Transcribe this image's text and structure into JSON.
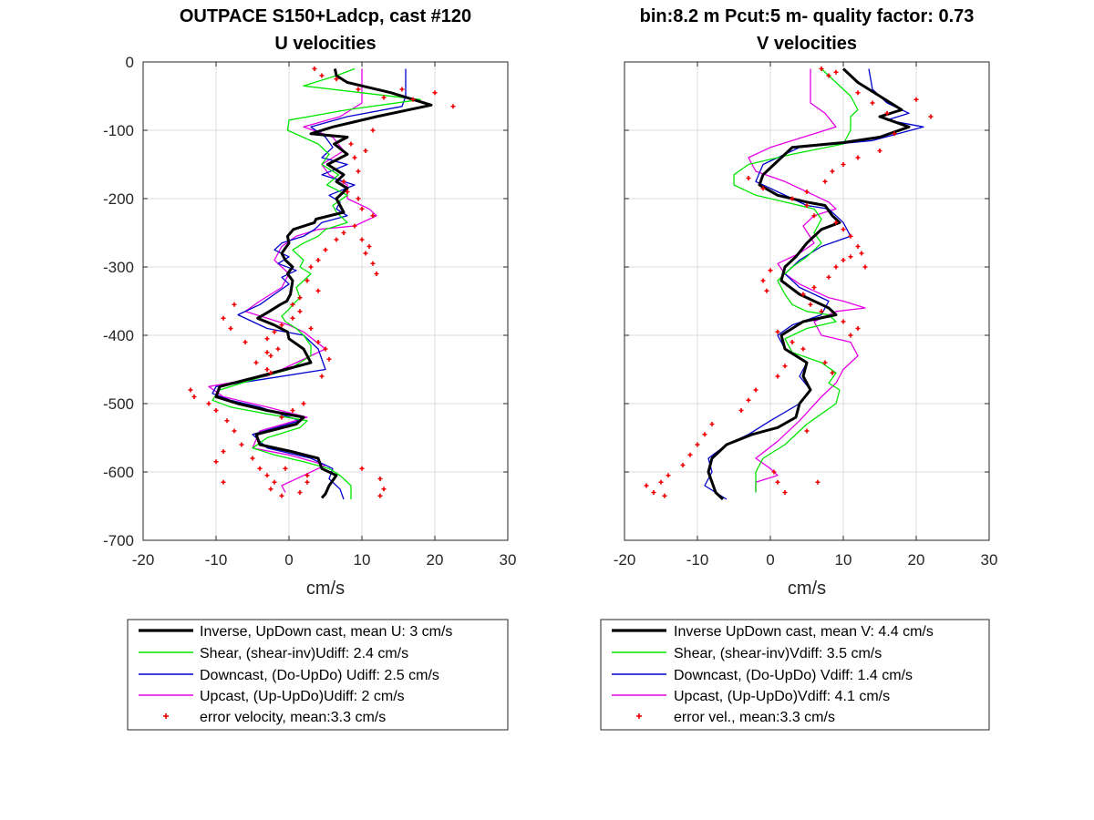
{
  "chart_data": [
    {
      "type": "line",
      "title": [
        "OUTPACE S150+Ladcp, cast #120",
        "U velocities"
      ],
      "xlabel": "cm/s",
      "ylabel": "",
      "xlim": [
        -20,
        30
      ],
      "ylim": [
        -700,
        0
      ],
      "xticks": [
        "-20",
        "-10",
        "0",
        "10",
        "20",
        "30"
      ],
      "yticks": [
        "0",
        "-100",
        "-200",
        "-300",
        "-400",
        "-500",
        "-600",
        "-700"
      ],
      "grid": true,
      "legend_position": "below",
      "legend": [
        "Inverse, UpDown cast, mean U:  3 cm/s",
        "Shear, (shear-inv)Udiff:  2.4 cm/s",
        "Downcast, (Do-UpDo) Udiff:  2.5 cm/s",
        "Upcast, (Up-UpDo)Udiff:  2 cm/s",
        "error velocity, mean:3.3 cm/s"
      ],
      "series": [
        {
          "name": "Inverse, UpDown cast, mean U:  3 cm/s",
          "color": "#000000",
          "style": "thick",
          "x": [
            6.3,
            6.5,
            8.0,
            14.0,
            19.5,
            12.0,
            6.0,
            3.0,
            8.0,
            6.2,
            8.0,
            5.3,
            7.5,
            6.5,
            8.0,
            6.5,
            7.5,
            3.7,
            3.5,
            0.6,
            -0.2,
            0.0,
            -1.0,
            -0.5,
            0.5,
            -0.2,
            0.5,
            0.2,
            -0.3,
            -1.2,
            -2.7,
            -4.3,
            -2.0,
            -0.2,
            0.0,
            2.0,
            3.0,
            -4.0,
            -9.5,
            -10.0,
            -7.0,
            -3.0,
            2.0,
            1.0,
            -4.5,
            -4.0,
            0.3,
            4.0,
            4.5,
            6.5,
            5.5,
            5.0,
            4.5
          ],
          "y": [
            -10,
            -20,
            -30,
            -45,
            -63,
            -80,
            -95,
            -105,
            -110,
            -120,
            -135,
            -150,
            -165,
            -175,
            -185,
            -200,
            -220,
            -230,
            -235,
            -245,
            -255,
            -265,
            -280,
            -290,
            -300,
            -310,
            -320,
            -340,
            -350,
            -355,
            -365,
            -375,
            -385,
            -395,
            -405,
            -420,
            -440,
            -460,
            -475,
            -490,
            -500,
            -510,
            -520,
            -530,
            -545,
            -560,
            -570,
            -580,
            -595,
            -605,
            -620,
            -632,
            -638
          ]
        },
        {
          "name": "Shear, (shear-inv)Udiff:  2.4 cm/s",
          "color": "#00e600",
          "x": [
            9.0,
            6.5,
            2.0,
            10.0,
            18.0,
            8.0,
            0.0,
            -0.2,
            4.0,
            5.5,
            4.5,
            6.8,
            5.2,
            8.0,
            6.0,
            6.5,
            8.0,
            5.0,
            4.0,
            2.0,
            0.5,
            2.0,
            1.5,
            3.0,
            2.0,
            1.0,
            1.5,
            0.5,
            0.0,
            -1.0,
            -0.5,
            1.0,
            2.0,
            3.0,
            3.0,
            0.0,
            -5.0,
            -9.5,
            -10.5,
            -8.0,
            -3.0,
            2.5,
            1.5,
            -3.0,
            -5.0,
            -2.0,
            2.0,
            5.5,
            7.0,
            8.5,
            8.5
          ],
          "y": [
            -10,
            -20,
            -35,
            -45,
            -55,
            -70,
            -85,
            -100,
            -120,
            -135,
            -150,
            -165,
            -180,
            -195,
            -210,
            -220,
            -235,
            -245,
            -255,
            -265,
            -275,
            -290,
            -300,
            -310,
            -320,
            -330,
            -345,
            -355,
            -362,
            -372,
            -380,
            -390,
            -400,
            -415,
            -430,
            -450,
            -465,
            -480,
            -495,
            -505,
            -515,
            -525,
            -535,
            -550,
            -565,
            -575,
            -585,
            -595,
            -605,
            -620,
            -640
          ]
        },
        {
          "name": "Downcast, (Do-UpDo) Udiff:  2.5 cm/s",
          "color": "#0000cc",
          "x": [
            16.0,
            16.0,
            15.5,
            8.0,
            3.0,
            5.0,
            6.0,
            4.5,
            8.0,
            4.5,
            9.0,
            5.5,
            7.0,
            6.5,
            8.0,
            4.5,
            3.5,
            2.0,
            -1.0,
            -2.0,
            0.0,
            -1.5,
            1.0,
            -1.0,
            0.0,
            -2.0,
            -4.0,
            -7.0,
            -5.0,
            -3.0,
            2.0,
            4.0,
            5.0,
            -4.0,
            -10.0,
            -10.5,
            -8.0,
            -4.0,
            1.5,
            -5.0,
            -3.0,
            3.0,
            6.0,
            5.5,
            7.0,
            7.5
          ],
          "y": [
            -10,
            -50,
            -65,
            -80,
            -95,
            -110,
            -125,
            -140,
            -150,
            -165,
            -180,
            -195,
            -205,
            -215,
            -225,
            -235,
            -245,
            -255,
            -265,
            -275,
            -285,
            -295,
            -305,
            -315,
            -325,
            -340,
            -355,
            -370,
            -380,
            -390,
            -400,
            -420,
            -450,
            -465,
            -475,
            -485,
            -495,
            -505,
            -525,
            -545,
            -565,
            -580,
            -595,
            -610,
            -625,
            -640
          ]
        },
        {
          "name": "Upcast, (Up-UpDo)Udiff:  2 cm/s",
          "color": "#e600e6",
          "x": [
            10.0,
            10.0,
            10.0,
            7.0,
            2.0,
            6.0,
            7.5,
            4.5,
            5.5,
            8.0,
            8.0,
            11.0,
            12.0,
            9.0,
            4.0,
            1.0,
            -1.0,
            -2.0,
            0.0,
            -1.0,
            -4.0,
            -6.0,
            -3.0,
            0.0,
            2.0,
            5.0,
            -3.0,
            -11.0,
            -9.0,
            -3.0,
            2.5,
            -4.0,
            -5.0,
            0.0,
            5.0,
            2.0,
            -1.0,
            -0.5
          ],
          "y": [
            -10,
            -40,
            -60,
            -80,
            -95,
            -110,
            -130,
            -150,
            -165,
            -180,
            -200,
            -215,
            -225,
            -240,
            -245,
            -255,
            -270,
            -290,
            -310,
            -330,
            -350,
            -365,
            -375,
            -385,
            -395,
            -420,
            -460,
            -475,
            -490,
            -505,
            -520,
            -540,
            -565,
            -575,
            -590,
            -605,
            -620,
            -630
          ]
        }
      ],
      "error_velocity": {
        "name": "error velocity, mean:3.3 cm/s",
        "color": "#ee0000",
        "x": [
          3.5,
          4.5,
          6.5,
          9.5,
          13.0,
          17.0,
          22.5,
          15.5,
          20.0,
          11.5,
          8.5,
          10.5,
          9.0,
          9.5,
          7.5,
          8.0,
          9.5,
          10.0,
          9.0,
          11.5,
          10.0,
          11.0,
          10.5,
          11.5,
          12.0,
          7.5,
          6.5,
          5.0,
          4.0,
          3.0,
          2.5,
          4.0,
          1.5,
          0.5,
          1.5,
          0.5,
          -1.0,
          -2.0,
          -3.0,
          -1.5,
          -2.5,
          -4.5,
          -3.0,
          -7.5,
          -9.0,
          -8.0,
          -6.0,
          -3.0,
          -2.5,
          3.0,
          4.0,
          5.0,
          5.5,
          4.5,
          2.0,
          0.5,
          -1.0,
          -13.5,
          -13.0,
          -11.0,
          -10.0,
          -8.5,
          -7.5,
          -6.5,
          -5.0,
          -9.0,
          -10.0,
          -4.0,
          -3.0,
          -2.0,
          10.0,
          12.5,
          13.0,
          12.5,
          -9.0,
          -2.5,
          -1.0,
          -0.5,
          2.5,
          2.5,
          1.5
        ],
        "y": [
          -10,
          -20,
          -25,
          -40,
          -52,
          -55,
          -65,
          -40,
          -45,
          -100,
          -120,
          -130,
          -140,
          -160,
          -175,
          -190,
          -200,
          -215,
          -240,
          -225,
          -260,
          -270,
          -280,
          -295,
          -310,
          -250,
          -260,
          -275,
          -290,
          -300,
          -320,
          -335,
          -345,
          -355,
          -365,
          -375,
          -385,
          -395,
          -405,
          -420,
          -430,
          -440,
          -450,
          -355,
          -375,
          -390,
          -410,
          -425,
          -455,
          -390,
          -410,
          -420,
          -435,
          -460,
          -500,
          -510,
          -520,
          -480,
          -490,
          -500,
          -510,
          -525,
          -540,
          -560,
          -580,
          -570,
          -585,
          -595,
          -605,
          -615,
          -595,
          -610,
          -625,
          -635,
          -615,
          -625,
          -635,
          -595,
          -605,
          -615,
          -630
        ]
      }
    },
    {
      "type": "line",
      "title": [
        "bin:8.2 m  Pcut:5 m- quality factor:  0.73",
        "V velocities"
      ],
      "xlabel": "cm/s",
      "ylabel": "",
      "xlim": [
        -20,
        30
      ],
      "ylim": [
        -700,
        0
      ],
      "xticks": [
        "-20",
        "-10",
        "0",
        "10",
        "20",
        "30"
      ],
      "yticks": [],
      "grid": true,
      "legend_position": "below",
      "legend": [
        "Inverse UpDown cast, mean V:  4.4 cm/s",
        "Shear, (shear-inv)Vdiff:  3.5 cm/s",
        "Downcast, (Do-UpDo) Vdiff:  1.4 cm/s",
        "Upcast, (Up-UpDo)Vdiff:  4.1 cm/s",
        "error vel., mean:3.3 cm/s"
      ],
      "series": [
        {
          "name": "Inverse UpDown cast, mean V:  4.4 cm/s",
          "color": "#000000",
          "style": "thick",
          "x": [
            10.0,
            12.0,
            15.0,
            18.0,
            15.0,
            19.0,
            15.0,
            10.0,
            3.0,
            0.5,
            -1.0,
            -1.5,
            1.0,
            5.0,
            7.5,
            8.5,
            9.5,
            7.0,
            5.0,
            3.5,
            2.0,
            1.5,
            4.0,
            8.0,
            9.0,
            4.5,
            1.5,
            2.0,
            5.0,
            4.5,
            5.5,
            4.0,
            3.5,
            1.0,
            -2.5,
            -6.0,
            -8.0,
            -8.5,
            -8.0,
            -7.5,
            -6.5
          ],
          "y": [
            -10,
            -30,
            -50,
            -70,
            -80,
            -95,
            -110,
            -118,
            -125,
            -150,
            -165,
            -180,
            -195,
            -205,
            -210,
            -225,
            -235,
            -245,
            -265,
            -285,
            -300,
            -320,
            -340,
            -360,
            -370,
            -380,
            -400,
            -420,
            -440,
            -460,
            -480,
            -500,
            -520,
            -535,
            -545,
            -560,
            -580,
            -600,
            -615,
            -630,
            -640
          ]
        },
        {
          "name": "Shear, (shear-inv)Vdiff:  3.5 cm/s",
          "color": "#00e600",
          "x": [
            7.0,
            9.0,
            11.0,
            12.0,
            11.0,
            11.0,
            10.0,
            3.0,
            -3.0,
            -5.0,
            -5.0,
            -2.0,
            2.0,
            6.0,
            7.0,
            6.0,
            7.0,
            5.0,
            3.0,
            1.0,
            2.0,
            3.0,
            5.0,
            8.0,
            9.0,
            5.0,
            2.0,
            3.0,
            7.0,
            9.0,
            8.0,
            9.5,
            9.0,
            5.0,
            2.0,
            -1.0,
            -2.0,
            -2.0
          ],
          "y": [
            -10,
            -30,
            -50,
            -70,
            -80,
            -100,
            -120,
            -135,
            -150,
            -165,
            -180,
            -195,
            -205,
            -215,
            -230,
            -250,
            -265,
            -285,
            -300,
            -320,
            -340,
            -355,
            -365,
            -370,
            -380,
            -390,
            -405,
            -425,
            -440,
            -455,
            -470,
            -480,
            -500,
            -530,
            -560,
            -580,
            -600,
            -630
          ]
        },
        {
          "name": "Downcast, (Do-UpDo) Vdiff:  1.4 cm/s",
          "color": "#0000cc",
          "x": [
            13.5,
            14.0,
            16.0,
            19.0,
            16.0,
            21.0,
            14.0,
            4.0,
            -1.0,
            -2.0,
            1.0,
            3.0,
            5.0,
            8.0,
            10.0,
            11.0,
            7.0,
            4.0,
            2.0,
            4.0,
            8.0,
            7.0,
            3.0,
            1.0,
            2.0,
            5.0,
            4.0,
            5.5,
            4.0,
            0.0,
            -3.0,
            -6.0,
            -8.5,
            -8.0,
            -9.0,
            -6.0
          ],
          "y": [
            -10,
            -40,
            -60,
            -75,
            -85,
            -95,
            -115,
            -125,
            -150,
            -175,
            -190,
            -200,
            -210,
            -215,
            -235,
            -255,
            -270,
            -290,
            -310,
            -330,
            -350,
            -370,
            -385,
            -400,
            -420,
            -440,
            -460,
            -480,
            -500,
            -525,
            -545,
            -560,
            -580,
            -600,
            -620,
            -640
          ]
        },
        {
          "name": "Upcast, (Up-UpDo)Vdiff:  4.1 cm/s",
          "color": "#e600e6",
          "x": [
            5.5,
            5.5,
            5.5,
            7.5,
            9.0,
            4.5,
            0.0,
            -3.0,
            -2.0,
            2.0,
            6.0,
            8.0,
            9.0,
            6.0,
            4.5,
            6.0,
            4.0,
            1.0,
            2.0,
            4.0,
            6.0,
            8.0,
            10.0,
            13.0,
            9.0,
            6.0,
            7.0,
            11.0,
            12.0,
            10.0,
            9.0,
            7.0,
            4.0,
            1.0,
            -2.0,
            0.0,
            1.0,
            -2.0,
            -2.0
          ],
          "y": [
            -10,
            -40,
            -60,
            -75,
            -95,
            -110,
            -125,
            -140,
            -160,
            -175,
            -195,
            -205,
            -215,
            -225,
            -240,
            -265,
            -280,
            -295,
            -310,
            -325,
            -335,
            -345,
            -350,
            -360,
            -365,
            -380,
            -400,
            -410,
            -430,
            -450,
            -470,
            -490,
            -525,
            -555,
            -580,
            -595,
            -605,
            -615,
            -630
          ]
        }
      ],
      "error_velocity": {
        "name": "error vel., mean:3.3 cm/s",
        "color": "#ee0000",
        "x": [
          7.0,
          8.0,
          9.0,
          12.0,
          14.0,
          16.0,
          17.0,
          20.0,
          22.0,
          15.0,
          12.0,
          10.0,
          8.5,
          7.5,
          5.0,
          3.0,
          -3.0,
          -1.0,
          5.0,
          6.0,
          9.0,
          10.0,
          11.0,
          12.0,
          12.5,
          13.0,
          11.0,
          10.0,
          9.0,
          8.0,
          6.0,
          0.0,
          -1.0,
          -0.5,
          4.5,
          5.5,
          7.0,
          10.0,
          12.0,
          11.0,
          1.0,
          3.0,
          4.5,
          7.5,
          8.5,
          2.0,
          1.0,
          -2.0,
          -3.0,
          -4.0,
          -8.0,
          -9.0,
          -10.0,
          -11.0,
          -12.0,
          -14.0,
          -15.0,
          -17.0,
          -16.0,
          -14.5,
          0.5,
          1.0,
          2.0,
          5.0,
          6.5
        ],
        "y": [
          -10,
          -20,
          -15,
          -45,
          -60,
          -75,
          -105,
          -55,
          -80,
          -130,
          -140,
          -150,
          -160,
          -175,
          -190,
          -200,
          -170,
          -185,
          -210,
          -225,
          -235,
          -245,
          -255,
          -270,
          -280,
          -300,
          -285,
          -290,
          -300,
          -315,
          -330,
          -305,
          -320,
          -335,
          -340,
          -355,
          -365,
          -380,
          -390,
          -400,
          -395,
          -410,
          -420,
          -440,
          -455,
          -445,
          -460,
          -480,
          -495,
          -510,
          -530,
          -545,
          -560,
          -575,
          -590,
          -605,
          -615,
          -620,
          -630,
          -635,
          -600,
          -615,
          -630,
          -540,
          -615
        ]
      }
    }
  ]
}
